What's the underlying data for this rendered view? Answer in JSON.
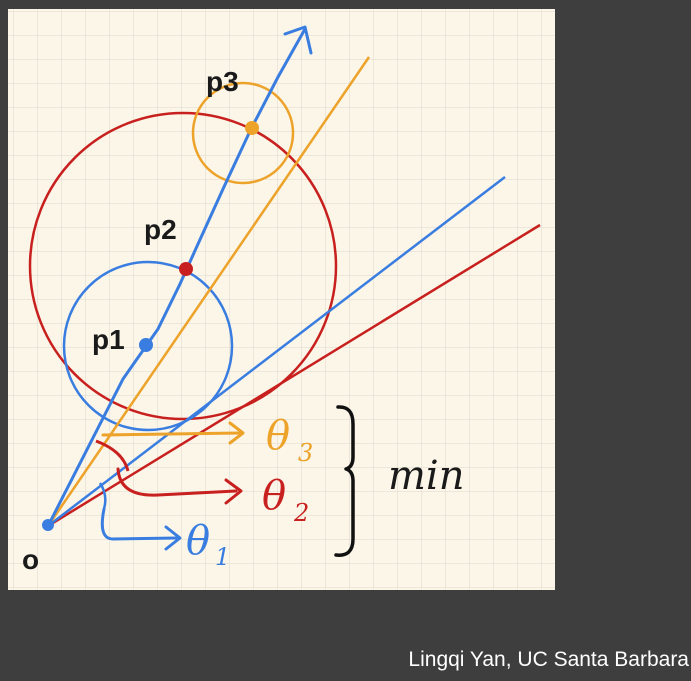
{
  "figure": {
    "labels": {
      "origin": "o",
      "p1": "p1",
      "p2": "p2",
      "p3": "p3",
      "theta1": "θ",
      "theta1_sub": "1",
      "theta2": "θ",
      "theta2_sub": "2",
      "theta3": "θ",
      "theta3_sub": "3",
      "min": "min"
    },
    "colors": {
      "paper": "#fbf6e8",
      "grid": "#ddd8cc",
      "blue": "#3a7de0",
      "red": "#c8201e",
      "orange": "#eda22a",
      "ink": "#1a1a1a"
    }
  },
  "footer": {
    "credit": "Lingqi Yan, UC Santa Barbara"
  }
}
